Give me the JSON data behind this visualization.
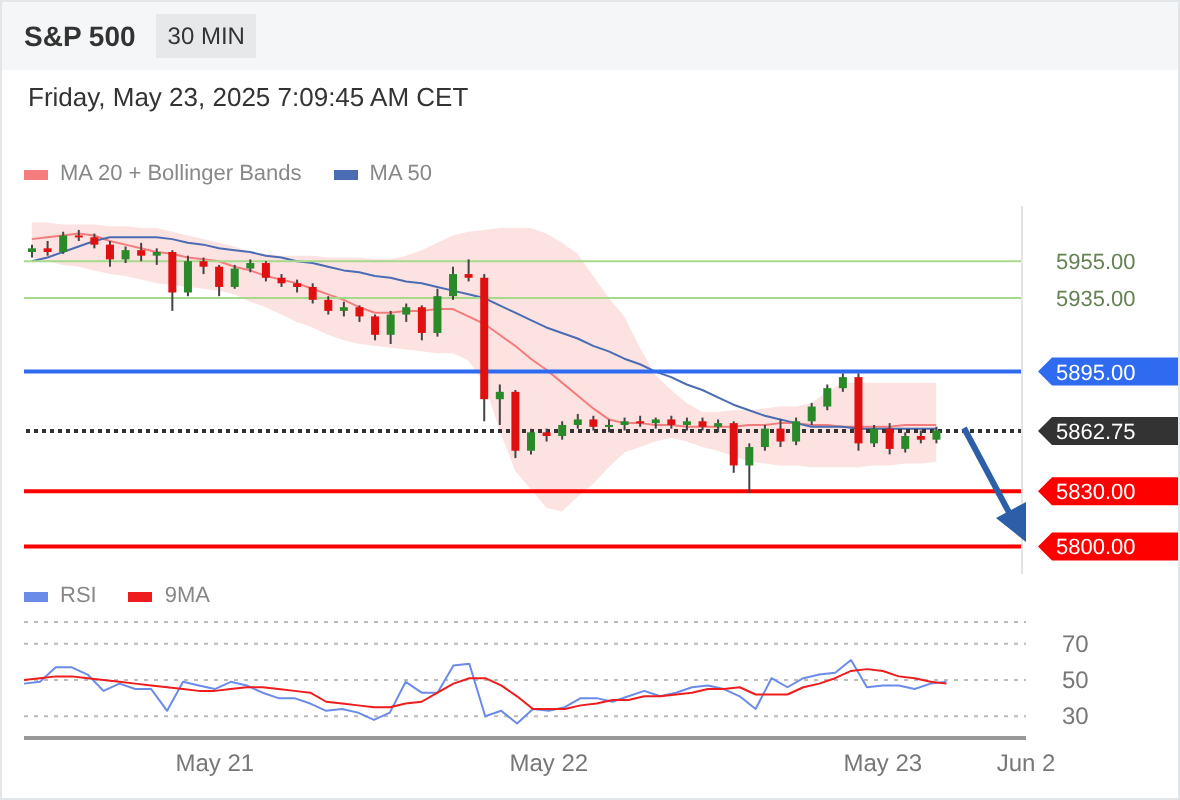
{
  "chart_data": [
    {
      "type": "candlestick",
      "title": "S&P 500",
      "subtitle": "30 MIN",
      "annotations": [
        "Friday, May 23, 2025 7:09:45 AM CET"
      ],
      "legend": "top left",
      "tick_labels": "y",
      "ylim": [
        5785,
        5985
      ],
      "yticks": [
        {
          "value": 5800,
          "label": "5800.00"
        },
        {
          "value": 5830,
          "label": "5830.00"
        },
        {
          "value": 5862.75,
          "label": "5862.75"
        },
        {
          "value": 5895,
          "label": "5895.00"
        },
        {
          "value": 5935,
          "label": "5935.00"
        },
        {
          "value": 5955,
          "label": "5955.00"
        }
      ],
      "categories": [
        null,
        null,
        null,
        null,
        null,
        null,
        null,
        null,
        null,
        null,
        null,
        null,
        null,
        null,
        null,
        null,
        null,
        null,
        null,
        null,
        null,
        null,
        null,
        null,
        null,
        null,
        null,
        null,
        null,
        null,
        null,
        null,
        null,
        null,
        null,
        null,
        null,
        null,
        null,
        null,
        null,
        null,
        null,
        null,
        null,
        null,
        null,
        null,
        null,
        null,
        null,
        null,
        null,
        null,
        null,
        null,
        null,
        null,
        null,
        null,
        null,
        null,
        null,
        null
      ],
      "ohlc": [
        [
          5960,
          5964,
          5957,
          5962
        ],
        [
          5962,
          5966,
          5958,
          5960
        ],
        [
          5960,
          5971,
          5959,
          5969
        ],
        [
          5969,
          5972,
          5966,
          5968
        ],
        [
          5968,
          5970,
          5962,
          5964
        ],
        [
          5964,
          5966,
          5952,
          5956
        ],
        [
          5956,
          5963,
          5954,
          5961
        ],
        [
          5961,
          5965,
          5955,
          5958
        ],
        [
          5958,
          5962,
          5953,
          5960
        ],
        [
          5960,
          5961,
          5928,
          5938
        ],
        [
          5938,
          5958,
          5936,
          5955
        ],
        [
          5955,
          5957,
          5948,
          5952
        ],
        [
          5952,
          5953,
          5936,
          5941
        ],
        [
          5941,
          5953,
          5940,
          5951
        ],
        [
          5951,
          5956,
          5949,
          5954
        ],
        [
          5954,
          5955,
          5944,
          5946
        ],
        [
          5946,
          5948,
          5941,
          5943
        ],
        [
          5943,
          5945,
          5938,
          5941
        ],
        [
          5941,
          5943,
          5932,
          5934
        ],
        [
          5934,
          5936,
          5926,
          5928
        ],
        [
          5928,
          5933,
          5925,
          5930
        ],
        [
          5930,
          5931,
          5922,
          5925
        ],
        [
          5925,
          5926,
          5912,
          5915
        ],
        [
          5915,
          5928,
          5910,
          5926
        ],
        [
          5926,
          5932,
          5922,
          5930
        ],
        [
          5930,
          5931,
          5912,
          5916
        ],
        [
          5916,
          5940,
          5914,
          5936
        ],
        [
          5936,
          5952,
          5934,
          5948
        ],
        [
          5948,
          5956,
          5944,
          5946
        ],
        [
          5946,
          5948,
          5868,
          5880
        ],
        [
          5880,
          5888,
          5866,
          5884
        ],
        [
          5884,
          5885,
          5848,
          5852
        ],
        [
          5852,
          5864,
          5850,
          5862
        ],
        [
          5862,
          5864,
          5857,
          5860
        ],
        [
          5860,
          5868,
          5858,
          5866
        ],
        [
          5866,
          5872,
          5864,
          5869
        ],
        [
          5869,
          5871,
          5863,
          5865
        ],
        [
          5865,
          5869,
          5862,
          5866
        ],
        [
          5866,
          5870,
          5863,
          5868
        ],
        [
          5868,
          5871,
          5865,
          5867
        ],
        [
          5867,
          5870,
          5864,
          5869
        ],
        [
          5869,
          5871,
          5864,
          5866
        ],
        [
          5866,
          5870,
          5863,
          5868
        ],
        [
          5868,
          5870,
          5863,
          5865
        ],
        [
          5865,
          5869,
          5862,
          5867
        ],
        [
          5867,
          5868,
          5840,
          5844
        ],
        [
          5844,
          5856,
          5829,
          5854
        ],
        [
          5854,
          5866,
          5852,
          5864
        ],
        [
          5864,
          5869,
          5854,
          5857
        ],
        [
          5857,
          5870,
          5855,
          5868
        ],
        [
          5868,
          5878,
          5866,
          5876
        ],
        [
          5876,
          5888,
          5874,
          5886
        ],
        [
          5886,
          5894,
          5884,
          5892
        ],
        [
          5892,
          5894,
          5852,
          5856
        ],
        [
          5856,
          5866,
          5854,
          5864
        ],
        [
          5864,
          5867,
          5850,
          5853
        ],
        [
          5853,
          5862,
          5851,
          5860
        ],
        [
          5860,
          5863,
          5856,
          5858
        ],
        [
          5858,
          5865,
          5856,
          5863
        ],
        null,
        null,
        null,
        null,
        null
      ],
      "series": [
        {
          "type": "line",
          "name": "MA 20 + Bollinger Bands",
          "color": "#f47c7c",
          "values": [
            5967,
            5968,
            5969,
            5970,
            5969,
            5966,
            5964,
            5962,
            5960,
            5959,
            5957,
            5956,
            5955,
            5952,
            5950,
            5947,
            5945,
            5943,
            5940,
            5937,
            5934,
            5930,
            5927,
            5927,
            5928,
            5928,
            5929,
            5929,
            5925,
            5921,
            5915,
            5909,
            5902,
            5896,
            5889,
            5882,
            5875,
            5869,
            5867,
            5867,
            5866,
            5866,
            5865,
            5865,
            5865,
            5865,
            5866,
            5866,
            5867,
            5867,
            5866,
            5866,
            5865,
            5865,
            5865,
            5865,
            5866,
            5866,
            5866,
            null,
            null,
            null,
            null,
            null
          ],
          "upper": [
            5976,
            5976,
            5975,
            5975,
            5975,
            5974,
            5974,
            5973,
            5973,
            5971,
            5969,
            5967,
            5965,
            5963,
            5960,
            5959,
            5958,
            5958,
            5958,
            5957,
            5957,
            5957,
            5956,
            5956,
            5958,
            5961,
            5965,
            5969,
            5971,
            5972,
            5973,
            5973,
            5973,
            5970,
            5965,
            5959,
            5947,
            5935,
            5925,
            5908,
            5893,
            5885,
            5878,
            5873,
            5873,
            5874,
            5874,
            5875,
            5876,
            5876,
            5878,
            5884,
            5889,
            5889,
            5889,
            5889,
            5889,
            5889,
            5889,
            null,
            null,
            null,
            null,
            null
          ],
          "lower": [
            5957,
            5955,
            5953,
            5952,
            5950,
            5948,
            5947,
            5945,
            5943,
            5942,
            5941,
            5940,
            5939,
            5937,
            5933,
            5930,
            5926,
            5922,
            5919,
            5915,
            5912,
            5910,
            5909,
            5908,
            5907,
            5906,
            5905,
            5905,
            5901,
            5889,
            5863,
            5841,
            5831,
            5821,
            5819,
            5827,
            5834,
            5843,
            5851,
            5854,
            5857,
            5859,
            5857,
            5854,
            5852,
            5849,
            5846,
            5845,
            5844,
            5844,
            5843,
            5843,
            5843,
            5843,
            5844,
            5844,
            5845,
            5845,
            5846,
            null,
            null,
            null,
            null,
            null
          ]
        },
        {
          "type": "line",
          "name": "MA 50",
          "color": "#4a6cb3",
          "values": [
            5955,
            5957,
            5960,
            5963,
            5966,
            5968,
            5968,
            5968,
            5968,
            5967,
            5965,
            5964,
            5962,
            5961,
            5960,
            5958,
            5957,
            5955,
            5954,
            5952,
            5950,
            5949,
            5947,
            5946,
            5944,
            5943,
            5941,
            5939,
            5937,
            5935,
            5931,
            5927,
            5923,
            5919,
            5916,
            5913,
            5909,
            5906,
            5902,
            5899,
            5895,
            5892,
            5888,
            5885,
            5881,
            5877,
            5874,
            5871,
            5869,
            5867,
            5865,
            5865,
            5865,
            5864,
            5864,
            5864,
            5864,
            5864,
            5864,
            null,
            null,
            null,
            null,
            null
          ]
        }
      ],
      "ref_lines": [
        {
          "axis": "y",
          "value": 5955,
          "color": "#a6d98a"
        },
        {
          "axis": "y",
          "value": 5935,
          "color": "#a6d98a"
        },
        {
          "axis": "y",
          "value": 5895,
          "color": "#2f6bf0"
        },
        {
          "axis": "y",
          "value": 5862.75,
          "color": "#333333",
          "line_style": "dotted"
        },
        {
          "axis": "y",
          "value": 5830,
          "color": "#ff0000"
        },
        {
          "axis": "y",
          "value": 5800,
          "color": "#ff0000"
        }
      ]
    },
    {
      "type": "line",
      "legend": "top left",
      "grid": "y",
      "ylim": [
        18,
        82
      ],
      "yticks": [
        30,
        50,
        70
      ],
      "categories": [
        null,
        null,
        null,
        null,
        null,
        null,
        null,
        null,
        null,
        null,
        null,
        null,
        "May 21",
        null,
        null,
        null,
        null,
        null,
        null,
        null,
        null,
        null,
        null,
        null,
        null,
        null,
        null,
        null,
        null,
        null,
        null,
        null,
        null,
        "May 22",
        null,
        null,
        null,
        null,
        null,
        null,
        null,
        null,
        null,
        null,
        null,
        null,
        null,
        null,
        null,
        null,
        null,
        null,
        null,
        null,
        "May 23",
        null,
        null,
        null,
        null,
        null,
        null,
        null,
        null,
        "Jun 2"
      ],
      "series": [
        {
          "name": "RSI",
          "color": "#6b8be8",
          "values": [
            48,
            49,
            57,
            57,
            53,
            44,
            48,
            45,
            45,
            33,
            49,
            47,
            45,
            49,
            47,
            43,
            40,
            40,
            37,
            33,
            34,
            32,
            28,
            32,
            49,
            43,
            43,
            58,
            59,
            30,
            33,
            26,
            34,
            33,
            35,
            40,
            40,
            38,
            41,
            44,
            41,
            43,
            46,
            47,
            45,
            41,
            34,
            51,
            46,
            51,
            53,
            54,
            61,
            46,
            47,
            47,
            45,
            48,
            49,
            null,
            null,
            null,
            null,
            null
          ]
        },
        {
          "name": "9MA",
          "color": "#ee1c1c",
          "values": [
            50,
            51,
            52,
            52,
            51,
            50,
            49,
            48,
            47,
            46,
            45,
            44,
            44,
            45,
            46,
            46,
            45,
            44,
            43,
            38,
            37,
            36,
            35,
            35,
            37,
            38,
            43,
            48,
            51,
            51,
            47,
            41,
            34,
            34,
            34,
            36,
            37,
            39,
            39,
            41,
            41,
            42,
            43,
            45,
            45,
            46,
            42,
            42,
            42,
            46,
            48,
            51,
            55,
            56,
            55,
            52,
            51,
            49,
            48,
            null,
            null,
            null,
            null,
            null
          ]
        }
      ]
    }
  ]
}
